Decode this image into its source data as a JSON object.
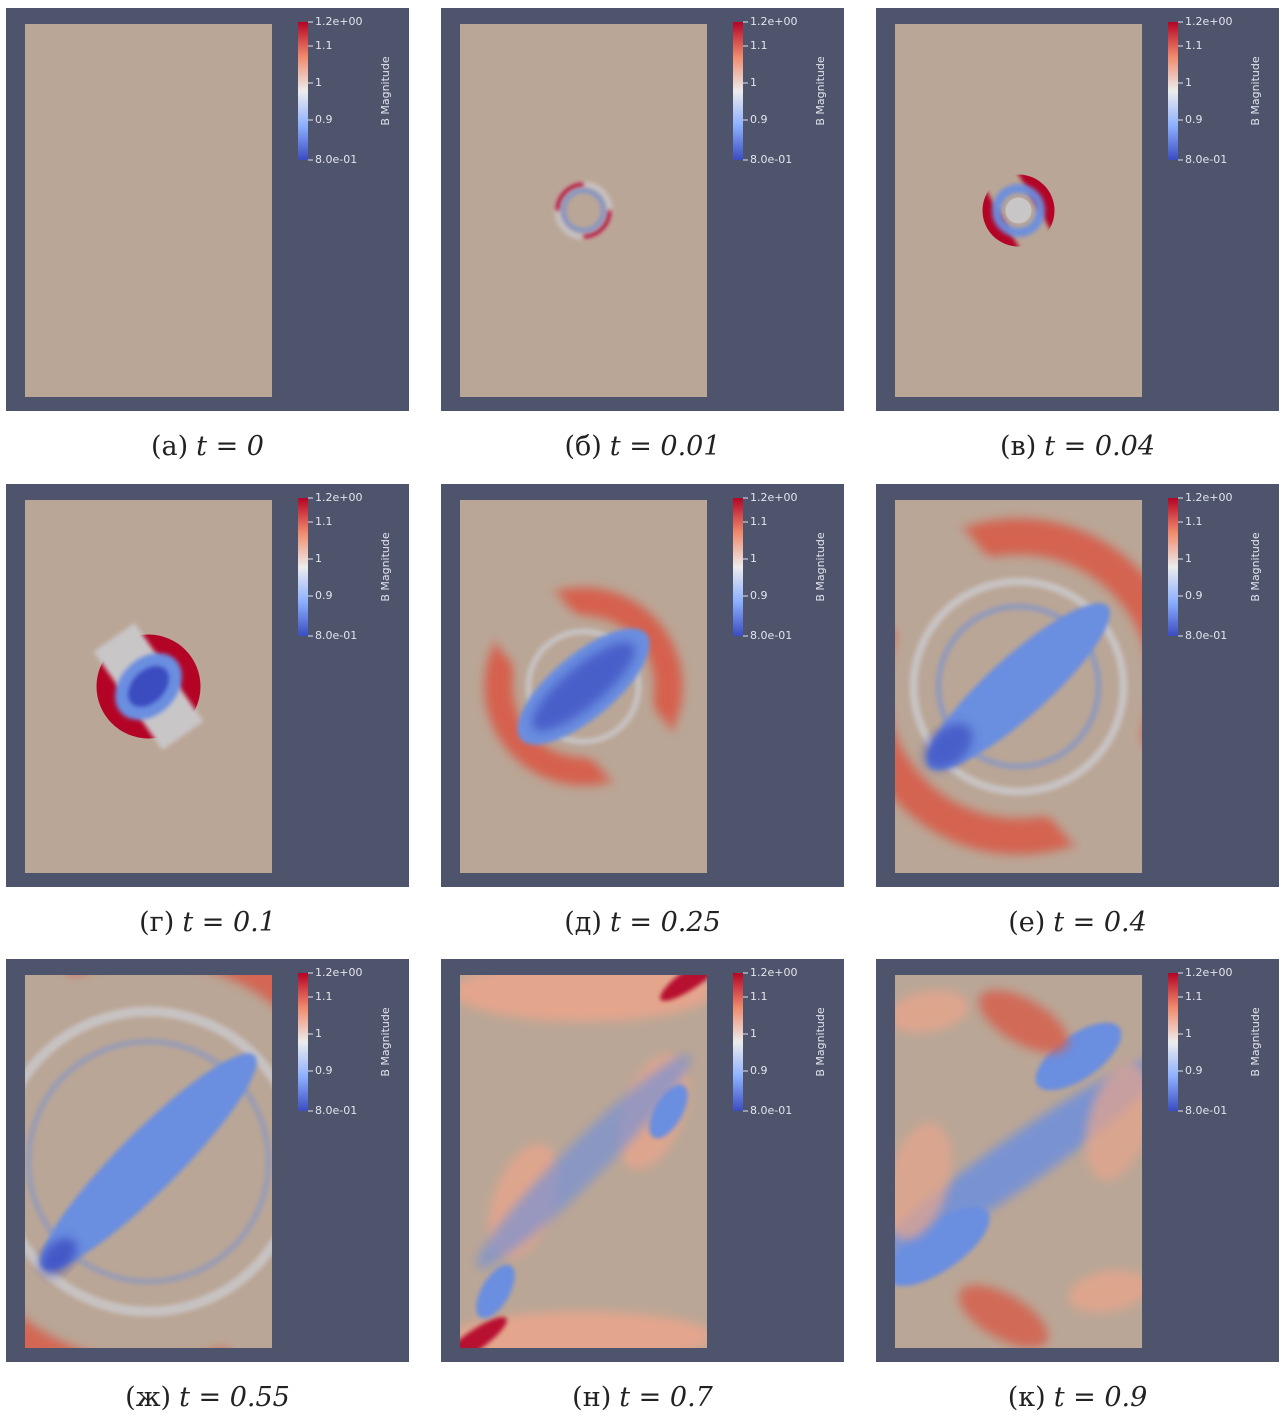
{
  "colorbar": {
    "title": "B Magnitude",
    "ticks": [
      "1.2e+00",
      "1.1",
      "1",
      "0.9",
      "8.0e-01"
    ]
  },
  "panels": [
    {
      "label": "(а)",
      "caption": "t = 0"
    },
    {
      "label": "(б)",
      "caption": "t = 0.01"
    },
    {
      "label": "(в)",
      "caption": "t = 0.04"
    },
    {
      "label": "(г)",
      "caption": "t = 0.1"
    },
    {
      "label": "(д)",
      "caption": "t = 0.25"
    },
    {
      "label": "(е)",
      "caption": "t = 0.4"
    },
    {
      "label": "(ж)",
      "caption": "t = 0.55"
    },
    {
      "label": "(н)",
      "caption": "t = 0.7"
    },
    {
      "label": "(к)",
      "caption": "t = 0.9"
    }
  ]
}
